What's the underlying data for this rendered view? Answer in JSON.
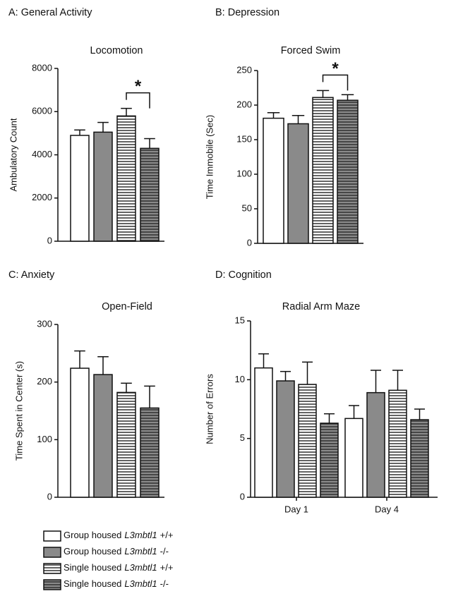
{
  "legend": [
    {
      "prefix": "Group housed",
      "gene": "L3mbtl1",
      "genotype": "+/+",
      "style": "white"
    },
    {
      "prefix": "Group housed",
      "gene": "L3mbtl1",
      "genotype": "-/-",
      "style": "gray"
    },
    {
      "prefix": "Single housed",
      "gene": "L3mbtl1",
      "genotype": "+/+",
      "style": "stripes"
    },
    {
      "prefix": "Single housed",
      "gene": "L3mbtl1",
      "genotype": "-/-",
      "style": "gray-stripes"
    }
  ],
  "chart_data": [
    {
      "type": "bar",
      "panel": "A:  General Activity",
      "title": "Locomotion",
      "y_label": "Ambulatory Count",
      "values": [
        4900,
        5050,
        5800,
        4300
      ],
      "errors": [
        250,
        450,
        350,
        450
      ],
      "ylim": [
        0,
        8000
      ],
      "yticks": [
        0,
        2000,
        4000,
        6000,
        8000
      ],
      "annotation": "*"
    },
    {
      "type": "bar",
      "panel": "B: Depression",
      "title": "Forced Swim",
      "y_label": "Time Immobile (Sec)",
      "values": [
        181,
        173,
        211,
        207
      ],
      "errors": [
        8,
        12,
        10,
        8
      ],
      "ylim": [
        0,
        250
      ],
      "yticks": [
        0,
        50,
        100,
        150,
        200,
        250
      ],
      "annotation": "*"
    },
    {
      "type": "bar",
      "panel": "C:  Anxiety",
      "title": "Open-Field",
      "y_label": "Time Spent in Center (s)",
      "values": [
        224,
        213,
        182,
        155
      ],
      "errors": [
        30,
        31,
        16,
        38
      ],
      "ylim": [
        0,
        300
      ],
      "yticks": [
        0,
        100,
        200,
        300
      ]
    },
    {
      "type": "grouped_bar",
      "panel": "D: Cognition",
      "title": "Radial Arm Maze",
      "y_label": "Number of Errors",
      "categories": [
        "Day 1",
        "Day 4"
      ],
      "series": [
        {
          "values": [
            11.0,
            6.7
          ],
          "errors": [
            1.2,
            1.1
          ]
        },
        {
          "values": [
            9.9,
            8.9
          ],
          "errors": [
            0.8,
            1.9
          ]
        },
        {
          "values": [
            9.6,
            9.1
          ],
          "errors": [
            1.9,
            1.7
          ]
        },
        {
          "values": [
            6.3,
            6.6
          ],
          "errors": [
            0.8,
            0.9
          ]
        }
      ],
      "ylim": [
        0,
        15
      ],
      "yticks": [
        0,
        5,
        10,
        15
      ]
    }
  ]
}
